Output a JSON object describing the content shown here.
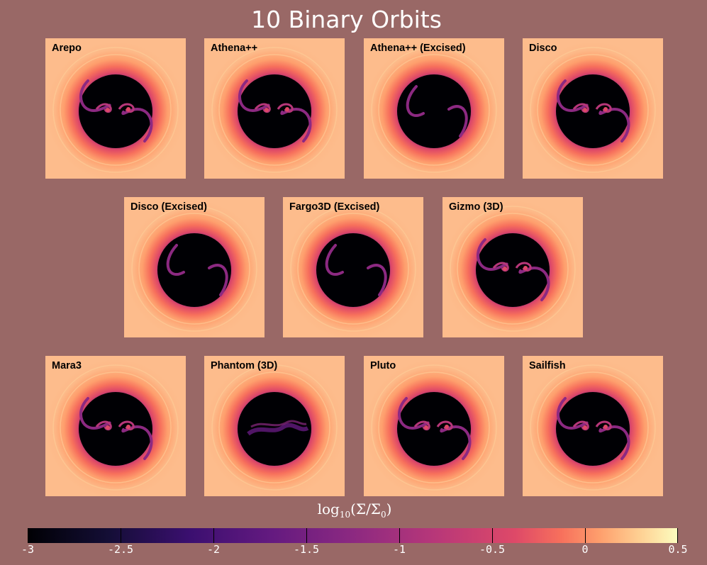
{
  "title": "10 Binary Orbits",
  "panels": [
    {
      "label": "Arepo",
      "inner": "binary"
    },
    {
      "label": "Athena++",
      "inner": "binary"
    },
    {
      "label": "Athena++ (Excised)",
      "inner": "excised"
    },
    {
      "label": "Disco",
      "inner": "binary"
    },
    {
      "label": "Disco (Excised)",
      "inner": "excised"
    },
    {
      "label": "Fargo3D (Excised)",
      "inner": "excised"
    },
    {
      "label": "Gizmo (3D)",
      "inner": "binary"
    },
    {
      "label": "Mara3",
      "inner": "binary"
    },
    {
      "label": "Phantom (3D)",
      "inner": "diffuse"
    },
    {
      "label": "Pluto",
      "inner": "binary"
    },
    {
      "label": "Sailfish",
      "inner": "binary"
    }
  ],
  "colorbar": {
    "label_main": "log",
    "label_sub": "10",
    "label_expr": "(Σ/Σ",
    "label_sub2": "0",
    "label_close": ")",
    "min": -3,
    "max": 0.5,
    "colormap": "magma",
    "ticks": [
      "-3",
      "-2.5",
      "-2",
      "-1.5",
      "-1",
      "-0.5",
      "0",
      "0.5"
    ]
  }
}
